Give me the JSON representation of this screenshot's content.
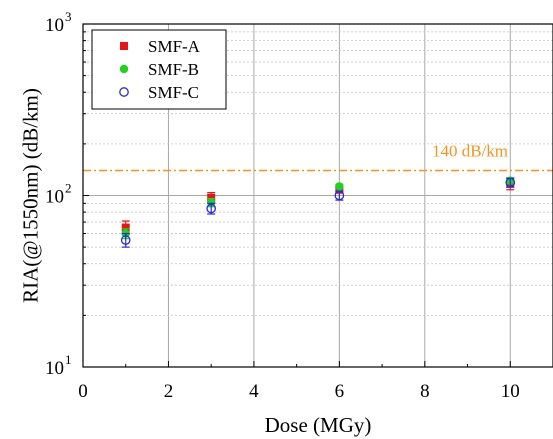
{
  "chart_data": {
    "type": "scatter",
    "xlabel": "Dose (MGy)",
    "ylabel": "RIA(@1550nm) (dB/km)",
    "xlim": [
      0,
      11
    ],
    "ylim": [
      10,
      1000
    ],
    "yscale": "log",
    "x_ticks": [
      0,
      2,
      4,
      6,
      8,
      10
    ],
    "x_tick_labels": [
      "0",
      "2",
      "4",
      "6",
      "8",
      "10"
    ],
    "y_ticks": [
      {
        "value": 10,
        "base": "10",
        "exp": "1"
      },
      {
        "value": 100,
        "base": "10",
        "exp": "2"
      },
      {
        "value": 1000,
        "base": "10",
        "exp": "3"
      }
    ],
    "grid": true,
    "legend_position": "top-left",
    "reference_line": {
      "y": 140,
      "label": "140 dB/km",
      "color": "#f7941d",
      "style": "dash-dot"
    },
    "series": [
      {
        "name": "SMF-A",
        "marker": "square",
        "filled": true,
        "color": "#e8141b",
        "points": [
          {
            "x": 1,
            "y": 65,
            "err_low": 6,
            "err_high": 6
          },
          {
            "x": 3,
            "y": 97,
            "err_low": 7,
            "err_high": 7
          },
          {
            "x": 6,
            "y": 108,
            "err_low": 4,
            "err_high": 4
          },
          {
            "x": 10,
            "y": 117,
            "err_low": 9,
            "err_high": 9
          }
        ]
      },
      {
        "name": "SMF-B",
        "marker": "circle",
        "filled": true,
        "color": "#1ed31e",
        "points": [
          {
            "x": 1,
            "y": 60,
            "err_low": 4,
            "err_high": 4
          },
          {
            "x": 3,
            "y": 91,
            "err_low": 5,
            "err_high": 5
          },
          {
            "x": 6,
            "y": 113,
            "err_low": 3,
            "err_high": 3
          },
          {
            "x": 10,
            "y": 122,
            "err_low": 5,
            "err_high": 5
          }
        ]
      },
      {
        "name": "SMF-C",
        "marker": "circle",
        "filled": false,
        "color": "#2a2ad8",
        "points": [
          {
            "x": 1,
            "y": 55,
            "err_low": 5,
            "err_high": 5
          },
          {
            "x": 3,
            "y": 84,
            "err_low": 6,
            "err_high": 6
          },
          {
            "x": 6,
            "y": 100,
            "err_low": 6,
            "err_high": 6
          },
          {
            "x": 10,
            "y": 119,
            "err_low": 7,
            "err_high": 7
          }
        ]
      }
    ]
  }
}
